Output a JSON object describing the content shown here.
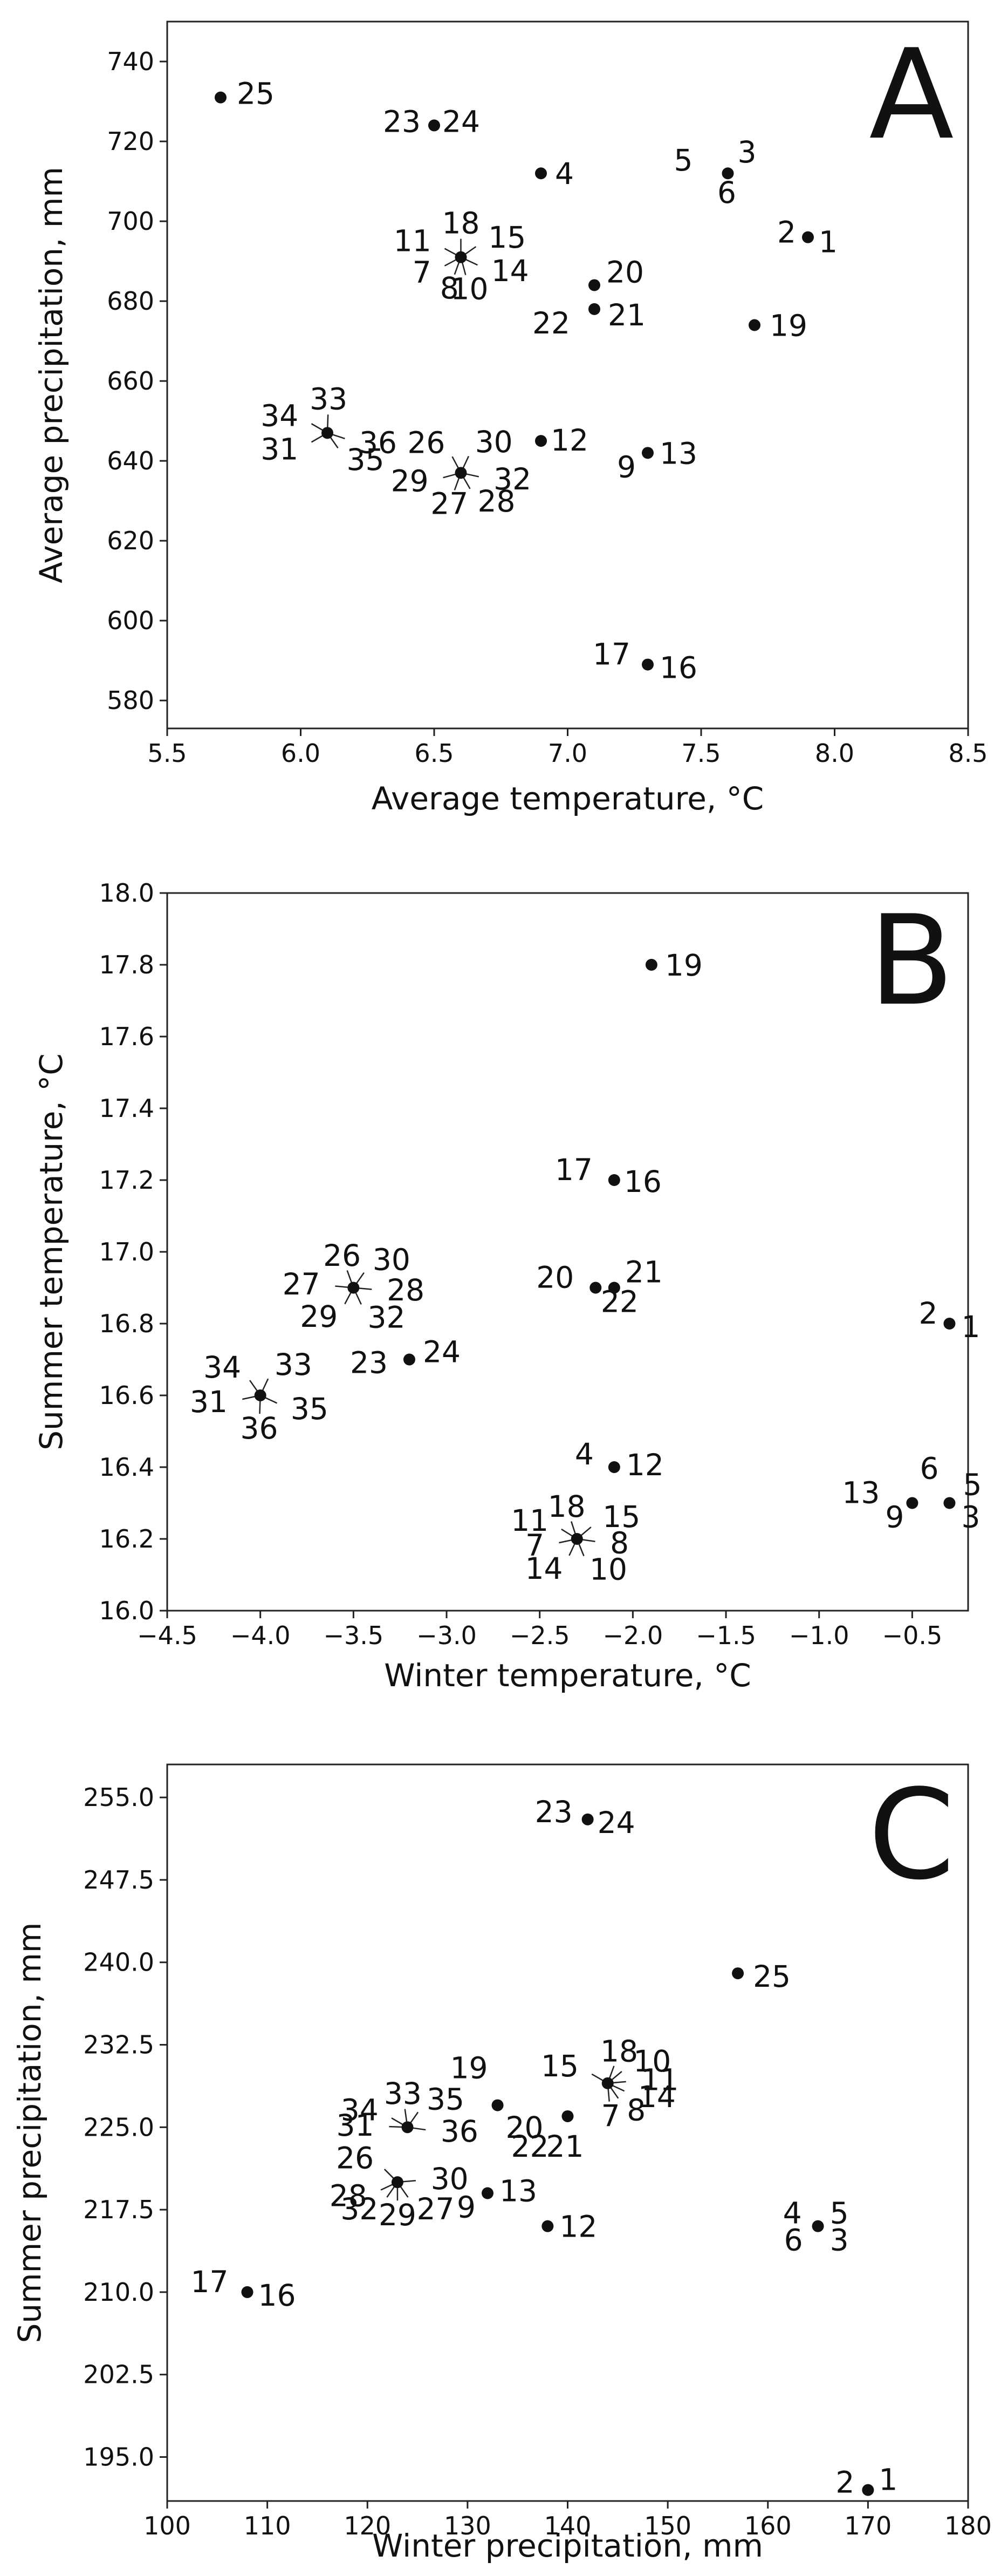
{
  "chart_data": [
    {
      "type": "scatter",
      "panel": "A",
      "xlabel": "Average temperature, °C",
      "ylabel": "Average precipitation, mm",
      "xlim": [
        5.5,
        8.5
      ],
      "ylim": [
        573,
        750
      ],
      "xticks": [
        5.5,
        6.0,
        6.5,
        7.0,
        7.5,
        8.0,
        8.5
      ],
      "xtick_labels": [
        "5.5",
        "6.0",
        "6.5",
        "7.0",
        "7.5",
        "8.0",
        "8.5"
      ],
      "yticks": [
        580,
        600,
        620,
        640,
        660,
        680,
        700,
        720,
        740
      ],
      "ytick_labels": [
        "580",
        "600",
        "620",
        "640",
        "660",
        "680",
        "700",
        "720",
        "740"
      ],
      "points": [
        {
          "x": 5.7,
          "y": 731,
          "labels": [
            "25"
          ]
        },
        {
          "x": 6.5,
          "y": 724,
          "labels": [
            "23",
            "24"
          ]
        },
        {
          "x": 6.9,
          "y": 712,
          "labels": [
            "4"
          ]
        },
        {
          "x": 7.6,
          "y": 712,
          "labels": [
            "5",
            "3",
            "6"
          ]
        },
        {
          "x": 7.9,
          "y": 696,
          "labels": [
            "2",
            "1"
          ]
        },
        {
          "x": 6.6,
          "y": 691,
          "labels": [
            "18",
            "11",
            "15",
            "14",
            "10",
            "8",
            "7"
          ]
        },
        {
          "x": 7.1,
          "y": 684,
          "labels": [
            "20"
          ]
        },
        {
          "x": 7.1,
          "y": 678,
          "labels": [
            "22",
            "21"
          ]
        },
        {
          "x": 7.7,
          "y": 674,
          "labels": [
            "19"
          ]
        },
        {
          "x": 6.1,
          "y": 647,
          "labels": [
            "34",
            "33",
            "36",
            "35",
            "31"
          ]
        },
        {
          "x": 6.6,
          "y": 637,
          "labels": [
            "26",
            "30",
            "32",
            "28",
            "27",
            "29"
          ]
        },
        {
          "x": 6.9,
          "y": 645,
          "labels": [
            "12"
          ]
        },
        {
          "x": 7.3,
          "y": 642,
          "labels": [
            "13",
            "9"
          ]
        },
        {
          "x": 7.3,
          "y": 589,
          "labels": [
            "17",
            "16"
          ]
        }
      ]
    },
    {
      "type": "scatter",
      "panel": "B",
      "xlabel": "Winter temperature, °C",
      "ylabel": "Summer temperature, °C",
      "xlim": [
        -4.5,
        -0.2
      ],
      "ylim": [
        16.0,
        18.0
      ],
      "xticks": [
        -4.5,
        -4.0,
        -3.5,
        -3.0,
        -2.5,
        -2.0,
        -1.5,
        -1.0,
        -0.5
      ],
      "xtick_labels": [
        "−4.5",
        "−4.0",
        "−3.5",
        "−3.0",
        "−2.5",
        "−2.0",
        "−1.5",
        "−1.0",
        "−0.5"
      ],
      "yticks": [
        16.0,
        16.2,
        16.4,
        16.6,
        16.8,
        17.0,
        17.2,
        17.4,
        17.6,
        17.8,
        18.0
      ],
      "ytick_labels": [
        "16.0",
        "16.2",
        "16.4",
        "16.6",
        "16.8",
        "17.0",
        "17.2",
        "17.4",
        "17.6",
        "17.8",
        "18.0"
      ],
      "points": [
        {
          "x": -1.9,
          "y": 17.8,
          "labels": [
            "19"
          ]
        },
        {
          "x": -2.1,
          "y": 17.2,
          "labels": [
            "17",
            "16"
          ]
        },
        {
          "x": -3.5,
          "y": 16.9,
          "labels": [
            "26",
            "30",
            "28",
            "32",
            "29",
            "27"
          ]
        },
        {
          "x": -2.2,
          "y": 16.9,
          "labels": [
            "20"
          ]
        },
        {
          "x": -2.1,
          "y": 16.9,
          "labels": [
            "21",
            "22"
          ]
        },
        {
          "x": -0.3,
          "y": 16.8,
          "labels": [
            "2",
            "1"
          ]
        },
        {
          "x": -3.2,
          "y": 16.7,
          "labels": [
            "23",
            "24"
          ]
        },
        {
          "x": -4.0,
          "y": 16.6,
          "labels": [
            "34",
            "33",
            "35",
            "36",
            "31"
          ]
        },
        {
          "x": -2.1,
          "y": 16.4,
          "labels": [
            "4",
            "12"
          ]
        },
        {
          "x": -0.5,
          "y": 16.3,
          "labels": [
            "13",
            "9"
          ]
        },
        {
          "x": -0.3,
          "y": 16.3,
          "labels": [
            "6",
            "5",
            "3"
          ]
        },
        {
          "x": -2.3,
          "y": 16.2,
          "labels": [
            "18",
            "11",
            "15",
            "8",
            "10",
            "14",
            "7"
          ]
        }
      ]
    },
    {
      "type": "scatter",
      "panel": "C",
      "xlabel": "Winter precipitation, mm",
      "ylabel": "Summer precipitation, mm",
      "xlim": [
        100,
        180
      ],
      "ylim": [
        191,
        258
      ],
      "xticks": [
        100,
        110,
        120,
        130,
        140,
        150,
        160,
        170,
        180
      ],
      "xtick_labels": [
        "100",
        "110",
        "120",
        "130",
        "140",
        "150",
        "160",
        "170",
        "180"
      ],
      "yticks": [
        195.0,
        202.5,
        210.0,
        217.5,
        225.0,
        232.5,
        240.0,
        247.5,
        255.0
      ],
      "ytick_labels": [
        "195.0",
        "202.5",
        "210.0",
        "217.5",
        "225.0",
        "232.5",
        "240.0",
        "247.5",
        "255.0"
      ],
      "points": [
        {
          "x": 142,
          "y": 253,
          "labels": [
            "23",
            "24"
          ]
        },
        {
          "x": 157,
          "y": 239,
          "labels": [
            "25"
          ]
        },
        {
          "x": 144,
          "y": 229,
          "labels": [
            "18",
            "15",
            "10",
            "11",
            "14",
            "8",
            "7"
          ]
        },
        {
          "x": 133,
          "y": 227,
          "labels": [
            "19"
          ]
        },
        {
          "x": 124,
          "y": 225,
          "labels": [
            "33",
            "34",
            "35",
            "31",
            "36"
          ]
        },
        {
          "x": 140,
          "y": 226,
          "labels": [
            "20",
            "22",
            "21"
          ]
        },
        {
          "x": 123,
          "y": 220,
          "labels": [
            "26",
            "30",
            "28",
            "27",
            "32",
            "29"
          ]
        },
        {
          "x": 132,
          "y": 219,
          "labels": [
            "13",
            "9"
          ]
        },
        {
          "x": 138,
          "y": 216,
          "labels": [
            "12"
          ]
        },
        {
          "x": 165,
          "y": 216,
          "labels": [
            "4",
            "5",
            "6",
            "3"
          ]
        },
        {
          "x": 108,
          "y": 210,
          "labels": [
            "17",
            "16"
          ]
        },
        {
          "x": 170,
          "y": 192,
          "labels": [
            "2",
            "1"
          ]
        }
      ]
    }
  ]
}
